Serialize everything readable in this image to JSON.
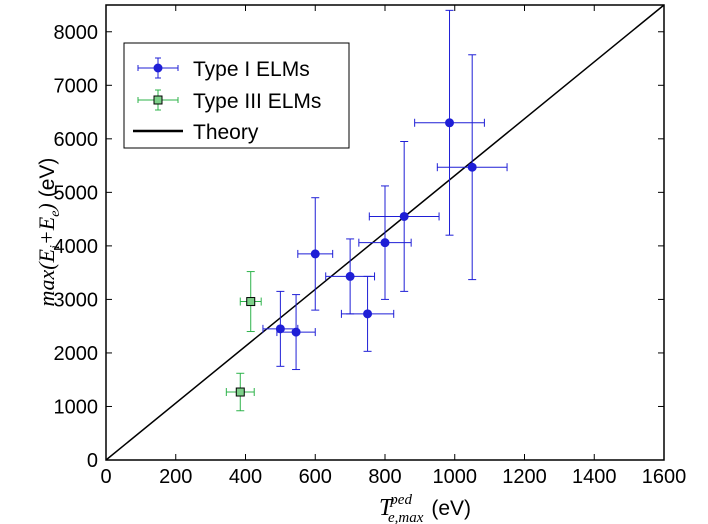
{
  "chart_data": {
    "type": "scatter",
    "xlim": [
      0,
      1600
    ],
    "ylim": [
      0,
      8500
    ],
    "x_ticks": [
      0,
      200,
      400,
      600,
      800,
      1000,
      1200,
      1400,
      1600
    ],
    "y_ticks": [
      0,
      1000,
      2000,
      3000,
      4000,
      5000,
      6000,
      7000,
      8000
    ],
    "x_tick_labels": [
      "0",
      "200",
      "400",
      "600",
      "800",
      "1000",
      "1200",
      "1400",
      "1600"
    ],
    "y_tick_labels": [
      "0",
      "1000",
      "2000",
      "3000",
      "4000",
      "5000",
      "6000",
      "7000",
      "8000"
    ],
    "xlabel": {
      "symbol": "T",
      "superscript": "ped",
      "subscript": "e,max",
      "unit": "(eV)"
    },
    "ylabel": {
      "prefix": "max",
      "open": "(",
      "e1": "E",
      "s1": "i",
      "plus": "+",
      "e2": "E",
      "s2": "e",
      "close": ")",
      "unit": "(eV)"
    },
    "grid": false,
    "legend_position": "top-left",
    "series": [
      {
        "name": "Type I ELMs",
        "marker": "circle",
        "color": "#1f1fd6",
        "points": [
          {
            "x": 500,
            "y": 2450,
            "xerr": 50,
            "yerr": 700
          },
          {
            "x": 545,
            "y": 2390,
            "xerr": 55,
            "yerr": 700
          },
          {
            "x": 600,
            "y": 3850,
            "xerr": 50,
            "yerr": 1050
          },
          {
            "x": 700,
            "y": 3430,
            "xerr": 70,
            "yerr": 700
          },
          {
            "x": 750,
            "y": 2730,
            "xerr": 75,
            "yerr": 700
          },
          {
            "x": 800,
            "y": 4060,
            "xerr": 75,
            "yerr": 1060
          },
          {
            "x": 855,
            "y": 4550,
            "xerr": 100,
            "yerr": 1400
          },
          {
            "x": 985,
            "y": 6300,
            "xerr": 100,
            "yerr": 2100
          },
          {
            "x": 1050,
            "y": 5470,
            "xerr": 100,
            "yerr": 2100
          }
        ]
      },
      {
        "name": "Type III ELMs",
        "marker": "square",
        "color": "#2db34a",
        "fill": "#7ed08a",
        "points": [
          {
            "x": 385,
            "y": 1270,
            "xerr": 40,
            "yerr": 350
          },
          {
            "x": 415,
            "y": 2960,
            "xerr": 30,
            "yerr": 560
          }
        ]
      },
      {
        "name": "Theory",
        "type": "line",
        "color": "#000000",
        "points": [
          {
            "x": 0,
            "y": 0
          },
          {
            "x": 1600,
            "y": 8500
          }
        ]
      }
    ]
  }
}
